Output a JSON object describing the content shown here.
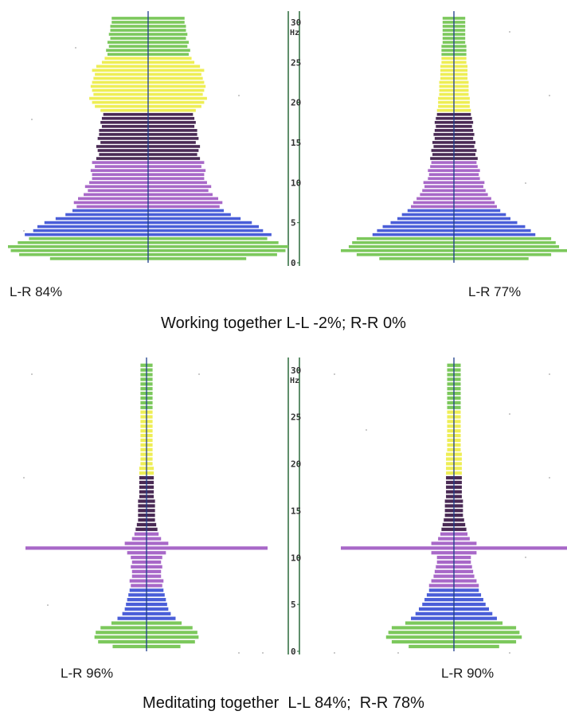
{
  "colors": {
    "green": "#7cc85c",
    "yellow": "#eeee55",
    "purple_dark": "#4a2a55",
    "violet": "#a868c8",
    "blue": "#4a5ed8",
    "axis": "#2a6a3a",
    "center": "#1c3c8a"
  },
  "bands": [
    {
      "name": "green",
      "from": 0,
      "to": 3.5
    },
    {
      "name": "blue",
      "from": 3.5,
      "to": 7
    },
    {
      "name": "violet",
      "from": 7,
      "to": 13
    },
    {
      "name": "purple_dark",
      "from": 13,
      "to": 19
    },
    {
      "name": "yellow",
      "from": 19,
      "to": 26
    },
    {
      "name": "green",
      "from": 26,
      "to": 31
    }
  ],
  "chart_data": [
    {
      "type": "bar",
      "group": "Working together",
      "ylabel": "Hz",
      "yticks": [
        0,
        5,
        10,
        15,
        20,
        25,
        30
      ],
      "y_range": [
        0,
        31
      ],
      "panels": [
        {
          "label": "L-R 84%",
          "freqs": [
            0.5,
            1,
            1.5,
            2,
            2.5,
            3,
            3.5,
            4,
            4.5,
            5,
            5.5,
            6,
            6.5,
            7,
            7.5,
            8,
            8.5,
            9,
            9.5,
            10,
            10.5,
            11,
            11.5,
            12,
            12.5,
            13,
            13.5,
            14,
            14.5,
            15,
            15.5,
            16,
            16.5,
            17,
            17.5,
            18,
            18.5,
            19,
            19.5,
            20,
            20.5,
            21,
            21.5,
            22,
            22.5,
            23,
            23.5,
            24,
            24.5,
            25,
            25.5,
            26,
            26.5,
            27,
            27.5,
            28,
            28.5,
            29,
            29.5,
            30,
            30.5
          ],
          "values": [
            0.7,
            0.92,
            0.98,
            1.0,
            0.93,
            0.85,
            0.88,
            0.82,
            0.79,
            0.74,
            0.66,
            0.59,
            0.54,
            0.51,
            0.53,
            0.5,
            0.46,
            0.43,
            0.45,
            0.42,
            0.4,
            0.4,
            0.41,
            0.38,
            0.4,
            0.37,
            0.35,
            0.36,
            0.37,
            0.34,
            0.36,
            0.35,
            0.35,
            0.33,
            0.34,
            0.33,
            0.32,
            0.34,
            0.38,
            0.4,
            0.42,
            0.39,
            0.4,
            0.41,
            0.4,
            0.39,
            0.38,
            0.4,
            0.37,
            0.33,
            0.31,
            0.29,
            0.3,
            0.28,
            0.29,
            0.27,
            0.28,
            0.27,
            0.27,
            0.26,
            0.26
          ]
        },
        {
          "label": "L-R 77%",
          "freqs": [
            0.5,
            1,
            1.5,
            2,
            2.5,
            3,
            3.5,
            4,
            4.5,
            5,
            5.5,
            6,
            6.5,
            7,
            7.5,
            8,
            8.5,
            9,
            9.5,
            10,
            10.5,
            11,
            11.5,
            12,
            12.5,
            13,
            13.5,
            14,
            14.5,
            15,
            15.5,
            16,
            16.5,
            17,
            17.5,
            18,
            18.5,
            19,
            19.5,
            20,
            20.5,
            21,
            21.5,
            22,
            22.5,
            23,
            23.5,
            24,
            24.5,
            25,
            25.5,
            26,
            26.5,
            27,
            27.5,
            28,
            28.5,
            29,
            29.5,
            30,
            30.5
          ],
          "values": [
            0.66,
            0.86,
            1.0,
            0.93,
            0.9,
            0.86,
            0.72,
            0.68,
            0.63,
            0.56,
            0.5,
            0.46,
            0.41,
            0.38,
            0.36,
            0.33,
            0.3,
            0.28,
            0.26,
            0.27,
            0.23,
            0.22,
            0.23,
            0.21,
            0.2,
            0.21,
            0.19,
            0.2,
            0.18,
            0.19,
            0.17,
            0.18,
            0.17,
            0.16,
            0.17,
            0.16,
            0.15,
            0.15,
            0.14,
            0.14,
            0.14,
            0.13,
            0.13,
            0.13,
            0.13,
            0.12,
            0.12,
            0.12,
            0.12,
            0.11,
            0.11,
            0.11,
            0.11,
            0.11,
            0.1,
            0.1,
            0.1,
            0.1,
            0.1,
            0.1,
            0.1
          ]
        }
      ],
      "caption": "Working together L-L -2%; R-R 0%"
    },
    {
      "type": "bar",
      "group": "Meditating together",
      "ylabel": "Hz",
      "yticks": [
        0,
        5,
        10,
        15,
        20,
        25,
        30
      ],
      "y_range": [
        0,
        31
      ],
      "panels": [
        {
          "label": "L-R 96%",
          "freqs": [
            0.5,
            1,
            1.5,
            2,
            2.5,
            3,
            3.5,
            4,
            4.5,
            5,
            5.5,
            6,
            6.5,
            7,
            7.5,
            8,
            8.5,
            9,
            9.5,
            10,
            10.5,
            11,
            11.5,
            12,
            12.5,
            13,
            13.5,
            14,
            14.5,
            15,
            15.5,
            16,
            16.5,
            17,
            17.5,
            18,
            18.5,
            19,
            19.5,
            20,
            20.5,
            21,
            21.5,
            22,
            22.5,
            23,
            23.5,
            24,
            24.5,
            25,
            25.5,
            26,
            26.5,
            27,
            27.5,
            28,
            28.5,
            29,
            29.5,
            30,
            30.5
          ],
          "values": [
            0.28,
            0.4,
            0.43,
            0.42,
            0.38,
            0.29,
            0.24,
            0.2,
            0.18,
            0.17,
            0.16,
            0.15,
            0.14,
            0.13,
            0.14,
            0.12,
            0.12,
            0.13,
            0.12,
            0.13,
            0.16,
            1.0,
            0.18,
            0.12,
            0.1,
            0.09,
            0.08,
            0.07,
            0.07,
            0.07,
            0.07,
            0.07,
            0.06,
            0.06,
            0.06,
            0.06,
            0.06,
            0.06,
            0.06,
            0.05,
            0.05,
            0.05,
            0.05,
            0.05,
            0.05,
            0.05,
            0.05,
            0.05,
            0.05,
            0.05,
            0.05,
            0.05,
            0.05,
            0.05,
            0.05,
            0.05,
            0.05,
            0.05,
            0.05,
            0.05,
            0.05
          ]
        },
        {
          "label": "L-R 90%",
          "freqs": [
            0.5,
            1,
            1.5,
            2,
            2.5,
            3,
            3.5,
            4,
            4.5,
            5,
            5.5,
            6,
            6.5,
            7,
            7.5,
            8,
            8.5,
            9,
            9.5,
            10,
            10.5,
            11,
            11.5,
            12,
            12.5,
            13,
            13.5,
            14,
            14.5,
            15,
            15.5,
            16,
            16.5,
            17,
            17.5,
            18,
            18.5,
            19,
            19.5,
            20,
            20.5,
            21,
            21.5,
            22,
            22.5,
            23,
            23.5,
            24,
            24.5,
            25,
            25.5,
            26,
            26.5,
            27,
            27.5,
            28,
            28.5,
            29,
            29.5,
            30,
            30.5
          ],
          "values": [
            0.4,
            0.55,
            0.6,
            0.58,
            0.55,
            0.43,
            0.38,
            0.34,
            0.31,
            0.28,
            0.26,
            0.24,
            0.22,
            0.22,
            0.2,
            0.18,
            0.17,
            0.16,
            0.15,
            0.15,
            0.2,
            1.0,
            0.2,
            0.14,
            0.12,
            0.11,
            0.1,
            0.09,
            0.08,
            0.08,
            0.08,
            0.08,
            0.07,
            0.07,
            0.07,
            0.07,
            0.07,
            0.07,
            0.07,
            0.07,
            0.07,
            0.07,
            0.06,
            0.06,
            0.06,
            0.06,
            0.06,
            0.06,
            0.06,
            0.06,
            0.06,
            0.06,
            0.06,
            0.06,
            0.06,
            0.06,
            0.06,
            0.06,
            0.06,
            0.06,
            0.06
          ]
        }
      ],
      "caption": "Meditating together  L-L 84%;  R-R 78%"
    }
  ]
}
